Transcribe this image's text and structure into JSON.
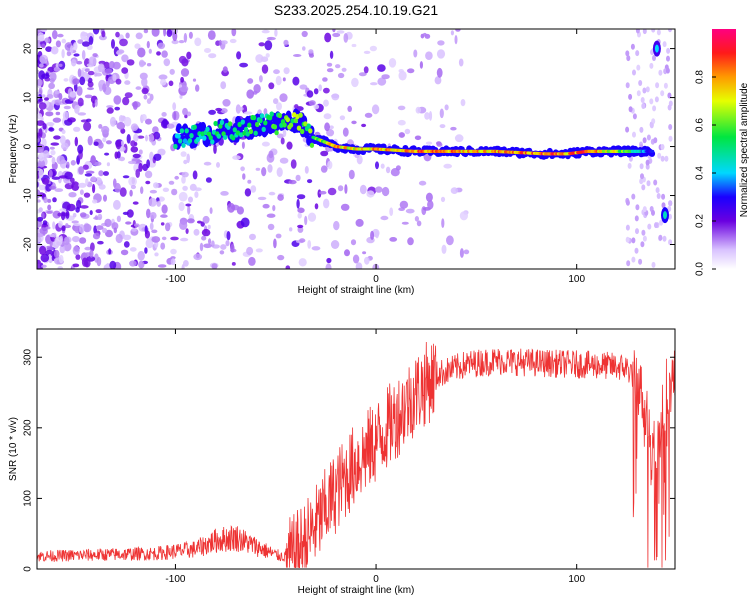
{
  "chart_data": [
    {
      "type": "heatmap",
      "title": "S233.2025.254.10.19.G21",
      "xlabel": "Height of straight line (km)",
      "ylabel": "Frequency (Hz)",
      "xlim": [
        -169,
        149
      ],
      "ylim": [
        -25,
        24
      ],
      "xticks": [
        -100,
        0,
        100
      ],
      "yticks": [
        -20,
        -10,
        0,
        10,
        20
      ],
      "colorbar": {
        "label": "Normalized spectral amplitude",
        "range": [
          0,
          1
        ],
        "ticks": [
          0.0,
          0.2,
          0.4,
          0.6,
          0.8
        ]
      },
      "ridge": {
        "x": [
          -100,
          -85,
          -70,
          -55,
          -45,
          -38,
          -32,
          -20,
          -10,
          0,
          20,
          60,
          85,
          95,
          105,
          125,
          138
        ],
        "y": [
          2,
          2.5,
          3.5,
          4.5,
          5,
          5.5,
          2,
          0,
          -0.5,
          -0.5,
          -1,
          -1,
          -1.5,
          -1.5,
          -1,
          -1,
          -1
        ],
        "amplitude": [
          0.45,
          0.5,
          0.55,
          0.55,
          0.6,
          0.65,
          0.6,
          0.8,
          0.75,
          0.8,
          0.85,
          0.8,
          0.9,
          0.85,
          0.9,
          0.6,
          0.3
        ]
      },
      "side_features": [
        {
          "x": 140,
          "y": 20,
          "amplitude": 0.25
        },
        {
          "x": 144,
          "y": -14,
          "amplitude": 0.3
        }
      ]
    },
    {
      "type": "line",
      "xlabel": "Height of straight line (km)",
      "ylabel": "SNR (10 * v/v)",
      "xlim": [
        -169,
        149
      ],
      "ylim": [
        0,
        340
      ],
      "xticks": [
        -100,
        0,
        100
      ],
      "yticks": [
        0,
        100,
        200,
        300
      ],
      "series": [
        {
          "name": "SNR",
          "color": "#ee3333",
          "x": [
            -169,
            -140,
            -110,
            -90,
            -80,
            -70,
            -60,
            -50,
            -42,
            -35,
            -28,
            -20,
            -10,
            0,
            10,
            20,
            30,
            45,
            60,
            80,
            100,
            115,
            125,
            130,
            135,
            140,
            145,
            149
          ],
          "y": [
            18,
            20,
            22,
            28,
            40,
            45,
            32,
            20,
            15,
            40,
            70,
            110,
            150,
            180,
            215,
            250,
            275,
            290,
            295,
            292,
            290,
            288,
            285,
            270,
            220,
            170,
            260,
            270
          ]
        }
      ]
    }
  ]
}
